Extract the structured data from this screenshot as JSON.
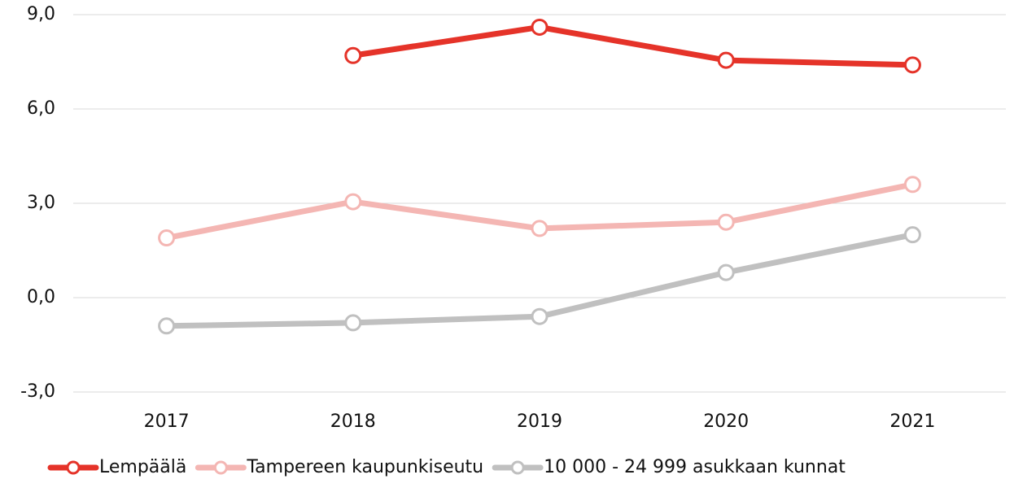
{
  "chart_data": {
    "type": "line",
    "categories": [
      "2017",
      "2018",
      "2019",
      "2020",
      "2021"
    ],
    "series": [
      {
        "name": "Lempäälä",
        "color": "#e53329",
        "values": [
          null,
          7.7,
          8.6,
          7.55,
          7.4
        ]
      },
      {
        "name": "Tampereen kaupunkiseutu",
        "color": "#f4b6b3",
        "values": [
          1.9,
          3.05,
          2.2,
          2.4,
          3.6
        ]
      },
      {
        "name": "10 000 - 24 999 asukkaan kunnat",
        "color": "#c0c0c0",
        "values": [
          -0.9,
          -0.8,
          -0.6,
          0.8,
          2.0
        ]
      }
    ],
    "ylim": [
      -3,
      9
    ],
    "yticks": [
      {
        "value": -3,
        "label": "-3,0"
      },
      {
        "value": 0,
        "label": "0,0"
      },
      {
        "value": 3,
        "label": "3,0"
      },
      {
        "value": 6,
        "label": "6,0"
      },
      {
        "value": 9,
        "label": "9,0"
      }
    ],
    "grid": true,
    "legend": "bottom"
  }
}
